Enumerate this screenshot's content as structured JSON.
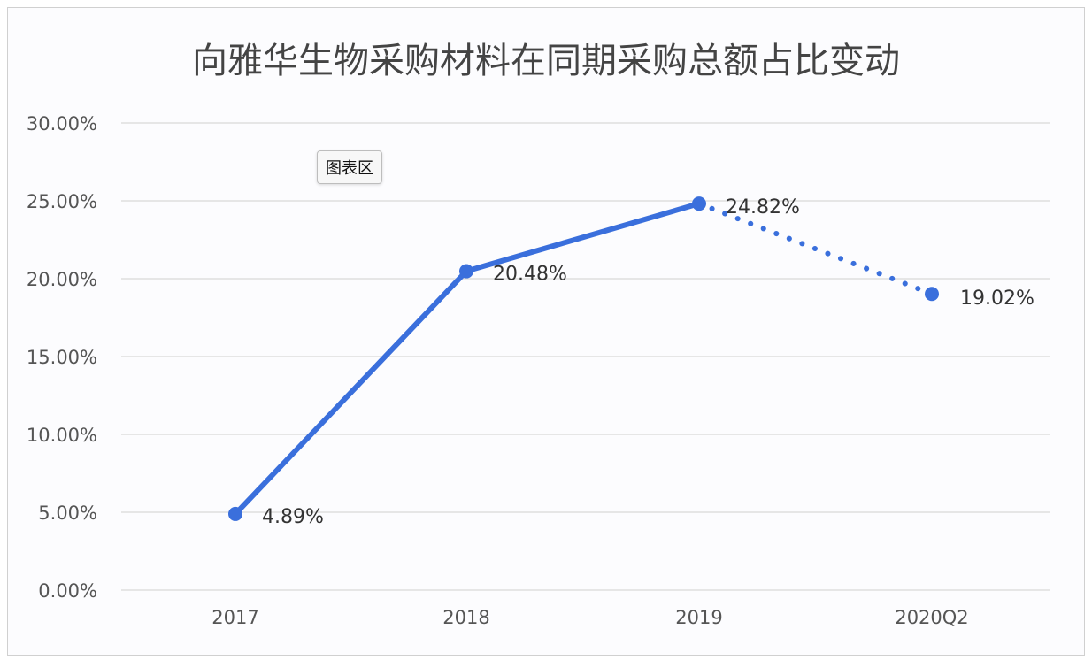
{
  "chart_data": {
    "type": "line",
    "title": "向雅华生物采购材料在同期采购总额占比变动",
    "categories": [
      "2017",
      "2018",
      "2019",
      "2020Q2"
    ],
    "values": [
      4.89,
      20.48,
      24.82,
      19.02
    ],
    "data_labels": [
      "4.89%",
      "20.48%",
      "24.82%",
      "19.02%"
    ],
    "value_unit": "%",
    "ylim": [
      0,
      30
    ],
    "yticks": [
      "0.00%",
      "5.00%",
      "10.00%",
      "15.00%",
      "20.00%",
      "25.00%",
      "30.00%"
    ],
    "ytick_values": [
      0,
      5,
      10,
      15,
      20,
      25,
      30
    ],
    "grid": true,
    "line_color": "#3a6fdc",
    "segment_styles": [
      "solid",
      "solid",
      "dotted"
    ],
    "xlabel": "",
    "ylabel": ""
  },
  "tooltip": {
    "label": "图表区"
  }
}
